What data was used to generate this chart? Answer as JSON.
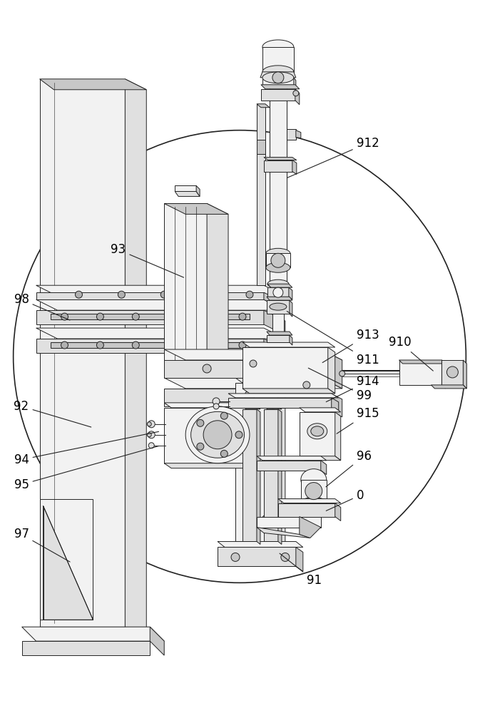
{
  "figure_width": 6.73,
  "figure_height": 10.0,
  "dpi": 100,
  "bg_color": "#ffffff",
  "line_color": "#222222",
  "lw": 0.7,
  "light": "#f2f2f2",
  "mid": "#e0e0e0",
  "dark": "#c8c8c8",
  "darker": "#b0b0b0"
}
